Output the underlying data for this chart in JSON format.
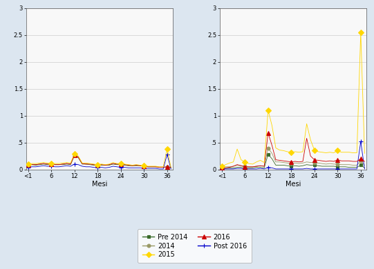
{
  "x_ticks": [
    "<1",
    "6",
    "12",
    "18",
    "24",
    "30",
    "36"
  ],
  "x_tick_positions": [
    0,
    6,
    12,
    18,
    24,
    30,
    36
  ],
  "xlabel": "Mesi",
  "ylim": [
    0,
    3
  ],
  "yticks": [
    0,
    0.5,
    1,
    1.5,
    2,
    2.5,
    3
  ],
  "ytick_labels": [
    "0",
    ".5",
    "1",
    "1.5",
    "2",
    "2.5",
    "3"
  ],
  "background_color": "#dce6f0",
  "plot_bg": "#f8f8f8",
  "n_points": 38,
  "left_series": {
    "pre2014": [
      0.08,
      0.09,
      0.08,
      0.09,
      0.1,
      0.09,
      0.09,
      0.09,
      0.09,
      0.09,
      0.1,
      0.09,
      0.26,
      0.22,
      0.1,
      0.1,
      0.09,
      0.08,
      0.07,
      0.08,
      0.08,
      0.08,
      0.1,
      0.09,
      0.09,
      0.08,
      0.07,
      0.07,
      0.07,
      0.07,
      0.06,
      0.05,
      0.05,
      0.05,
      0.04,
      0.04,
      0.04,
      0.03
    ],
    "2014": [
      0.09,
      0.09,
      0.09,
      0.1,
      0.11,
      0.1,
      0.1,
      0.09,
      0.09,
      0.1,
      0.11,
      0.1,
      0.27,
      0.23,
      0.11,
      0.1,
      0.1,
      0.09,
      0.08,
      0.09,
      0.08,
      0.09,
      0.11,
      0.1,
      0.1,
      0.09,
      0.08,
      0.07,
      0.08,
      0.07,
      0.06,
      0.05,
      0.05,
      0.05,
      0.04,
      0.04,
      0.05,
      0.04
    ],
    "2015": [
      0.1,
      0.11,
      0.11,
      0.12,
      0.13,
      0.12,
      0.11,
      0.11,
      0.11,
      0.12,
      0.13,
      0.12,
      0.29,
      0.25,
      0.12,
      0.12,
      0.11,
      0.1,
      0.09,
      0.1,
      0.09,
      0.1,
      0.13,
      0.11,
      0.11,
      0.1,
      0.09,
      0.08,
      0.09,
      0.08,
      0.07,
      0.06,
      0.06,
      0.06,
      0.05,
      0.05,
      0.38,
      0.04
    ],
    "2016": [
      0.09,
      0.09,
      0.09,
      0.1,
      0.11,
      0.1,
      0.1,
      0.09,
      0.09,
      0.1,
      0.11,
      0.1,
      0.27,
      0.23,
      0.11,
      0.1,
      0.1,
      0.09,
      0.08,
      0.09,
      0.08,
      0.09,
      0.11,
      0.1,
      0.1,
      0.09,
      0.08,
      0.07,
      0.08,
      0.07,
      0.06,
      0.05,
      0.05,
      0.05,
      0.04,
      0.04,
      0.05,
      0.04
    ],
    "post2016": [
      0.04,
      0.05,
      0.05,
      0.06,
      0.07,
      0.06,
      0.06,
      0.05,
      0.05,
      0.06,
      0.07,
      0.06,
      0.1,
      0.09,
      0.06,
      0.05,
      0.05,
      0.04,
      0.03,
      0.04,
      0.03,
      0.04,
      0.06,
      0.05,
      0.04,
      0.04,
      0.03,
      0.03,
      0.03,
      0.03,
      0.02,
      0.02,
      0.02,
      0.02,
      0.01,
      0.01,
      0.28,
      0.01
    ]
  },
  "right_series": {
    "pre2014": [
      0.02,
      0.02,
      0.03,
      0.03,
      0.04,
      0.04,
      0.03,
      0.03,
      0.03,
      0.04,
      0.04,
      0.03,
      0.28,
      0.2,
      0.08,
      0.08,
      0.08,
      0.07,
      0.06,
      0.07,
      0.06,
      0.07,
      0.09,
      0.08,
      0.08,
      0.07,
      0.06,
      0.06,
      0.06,
      0.06,
      0.05,
      0.05,
      0.05,
      0.04,
      0.04,
      0.04,
      0.08,
      0.03
    ],
    "2014": [
      0.04,
      0.05,
      0.05,
      0.06,
      0.08,
      0.07,
      0.06,
      0.05,
      0.05,
      0.06,
      0.07,
      0.06,
      0.4,
      0.3,
      0.14,
      0.14,
      0.13,
      0.12,
      0.11,
      0.12,
      0.11,
      0.12,
      0.14,
      0.13,
      0.13,
      0.12,
      0.11,
      0.1,
      0.11,
      0.1,
      0.1,
      0.09,
      0.09,
      0.09,
      0.08,
      0.08,
      0.16,
      0.08
    ],
    "2015": [
      0.06,
      0.09,
      0.12,
      0.14,
      0.38,
      0.18,
      0.14,
      0.11,
      0.1,
      0.14,
      0.17,
      0.13,
      1.1,
      0.82,
      0.4,
      0.36,
      0.35,
      0.33,
      0.32,
      0.33,
      0.32,
      0.33,
      0.85,
      0.55,
      0.36,
      0.33,
      0.32,
      0.31,
      0.32,
      0.31,
      0.35,
      0.32,
      0.32,
      0.32,
      0.31,
      0.31,
      2.55,
      0.3
    ],
    "2016": [
      0.03,
      0.03,
      0.04,
      0.06,
      0.09,
      0.07,
      0.05,
      0.05,
      0.05,
      0.06,
      0.07,
      0.06,
      0.68,
      0.45,
      0.18,
      0.17,
      0.16,
      0.15,
      0.14,
      0.15,
      0.14,
      0.15,
      0.58,
      0.25,
      0.18,
      0.17,
      0.16,
      0.15,
      0.16,
      0.15,
      0.18,
      0.16,
      0.16,
      0.16,
      0.15,
      0.15,
      0.2,
      0.15
    ],
    "post2016": [
      0.01,
      0.01,
      0.01,
      0.01,
      0.02,
      0.02,
      0.01,
      0.01,
      0.01,
      0.01,
      0.02,
      0.01,
      0.04,
      0.03,
      0.01,
      0.01,
      0.01,
      0.01,
      0.01,
      0.01,
      0.01,
      0.01,
      0.02,
      0.01,
      0.01,
      0.01,
      0.01,
      0.01,
      0.01,
      0.01,
      0.01,
      0.01,
      0.01,
      0.01,
      0.01,
      0.01,
      0.52,
      0.01
    ]
  },
  "series_order": [
    "pre2014",
    "2014",
    "2015",
    "2016",
    "post2016"
  ],
  "legend_entries": [
    {
      "key": "pre2014",
      "label": "Pre 2014",
      "color": "#3a6b2a",
      "marker": "s",
      "markersize": 3.5
    },
    {
      "key": "2014",
      "label": "2014",
      "color": "#999966",
      "marker": "o",
      "markersize": 3.5
    },
    {
      "key": "2015",
      "label": "2015",
      "color": "#ffd700",
      "marker": "D",
      "markersize": 4.0
    },
    {
      "key": "2016",
      "label": "2016",
      "color": "#cc0000",
      "marker": "^",
      "markersize": 4.0
    },
    {
      "key": "post2016",
      "label": "Post 2016",
      "color": "#0000cc",
      "marker": "+",
      "markersize": 5.0
    }
  ]
}
